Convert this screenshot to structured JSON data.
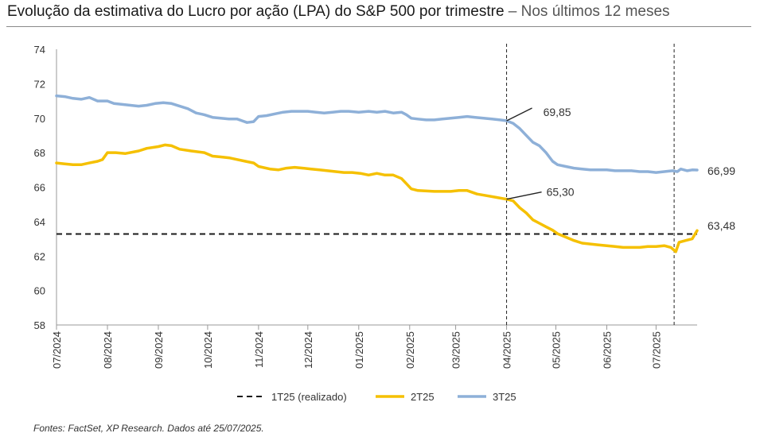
{
  "title": {
    "main": "Evolução da estimativa do Lucro por ação (LPA) do S&P 500 por trimestre",
    "sub": " – Nos últimos 12 meses"
  },
  "footer": "Fontes: FactSet, XP Research. Dados até 25/07/2025.",
  "colors": {
    "t1": "#1a1a1a",
    "t2": "#f5c000",
    "t3": "#8eb0d8",
    "axis": "#999999"
  },
  "chart_data": {
    "type": "line",
    "ylim": [
      58,
      74
    ],
    "yticks": [
      58,
      60,
      62,
      64,
      66,
      68,
      70,
      72,
      74
    ],
    "x_range_days": [
      0,
      390
    ],
    "months": [
      {
        "label": "07/2024",
        "day": 0
      },
      {
        "label": "08/2024",
        "day": 31
      },
      {
        "label": "09/2024",
        "day": 62
      },
      {
        "label": "10/2024",
        "day": 92
      },
      {
        "label": "11/2024",
        "day": 123
      },
      {
        "label": "12/2024",
        "day": 153
      },
      {
        "label": "01/2025",
        "day": 184
      },
      {
        "label": "02/2025",
        "day": 215
      },
      {
        "label": "03/2025",
        "day": 243
      },
      {
        "label": "04/2025",
        "day": 274
      },
      {
        "label": "05/2025",
        "day": 304
      },
      {
        "label": "06/2025",
        "day": 335
      },
      {
        "label": "07/2025",
        "day": 365
      }
    ],
    "vlines_day": [
      274,
      376
    ],
    "series": [
      {
        "name": "1T25 (realizado)",
        "style": "dashed",
        "constant": 63.28
      },
      {
        "name": "2T25",
        "style": "solid",
        "points": [
          [
            0,
            67.4
          ],
          [
            5,
            67.35
          ],
          [
            10,
            67.3
          ],
          [
            15,
            67.3
          ],
          [
            20,
            67.4
          ],
          [
            25,
            67.5
          ],
          [
            28,
            67.6
          ],
          [
            31,
            68.0
          ],
          [
            36,
            68.0
          ],
          [
            42,
            67.95
          ],
          [
            50,
            68.1
          ],
          [
            55,
            68.25
          ],
          [
            62,
            68.35
          ],
          [
            66,
            68.45
          ],
          [
            70,
            68.4
          ],
          [
            75,
            68.2
          ],
          [
            82,
            68.1
          ],
          [
            90,
            68.0
          ],
          [
            95,
            67.8
          ],
          [
            100,
            67.75
          ],
          [
            105,
            67.7
          ],
          [
            110,
            67.6
          ],
          [
            115,
            67.5
          ],
          [
            120,
            67.4
          ],
          [
            123,
            67.2
          ],
          [
            130,
            67.05
          ],
          [
            135,
            67.0
          ],
          [
            140,
            67.1
          ],
          [
            145,
            67.15
          ],
          [
            150,
            67.1
          ],
          [
            155,
            67.05
          ],
          [
            160,
            67.0
          ],
          [
            165,
            66.95
          ],
          [
            170,
            66.9
          ],
          [
            175,
            66.85
          ],
          [
            180,
            66.85
          ],
          [
            185,
            66.8
          ],
          [
            190,
            66.7
          ],
          [
            195,
            66.8
          ],
          [
            200,
            66.7
          ],
          [
            205,
            66.7
          ],
          [
            210,
            66.5
          ],
          [
            213,
            66.2
          ],
          [
            216,
            65.9
          ],
          [
            220,
            65.8
          ],
          [
            230,
            65.75
          ],
          [
            240,
            65.75
          ],
          [
            245,
            65.8
          ],
          [
            250,
            65.8
          ],
          [
            256,
            65.6
          ],
          [
            262,
            65.5
          ],
          [
            268,
            65.4
          ],
          [
            274,
            65.3
          ],
          [
            278,
            65.2
          ],
          [
            282,
            64.8
          ],
          [
            286,
            64.5
          ],
          [
            290,
            64.1
          ],
          [
            294,
            63.9
          ],
          [
            298,
            63.7
          ],
          [
            302,
            63.5
          ],
          [
            305,
            63.3
          ],
          [
            310,
            63.1
          ],
          [
            315,
            62.9
          ],
          [
            320,
            62.75
          ],
          [
            325,
            62.7
          ],
          [
            330,
            62.65
          ],
          [
            335,
            62.6
          ],
          [
            340,
            62.55
          ],
          [
            345,
            62.5
          ],
          [
            350,
            62.5
          ],
          [
            355,
            62.5
          ],
          [
            360,
            62.55
          ],
          [
            365,
            62.55
          ],
          [
            370,
            62.6
          ],
          [
            374,
            62.5
          ],
          [
            377,
            62.25
          ],
          [
            379,
            62.8
          ],
          [
            383,
            62.9
          ],
          [
            387,
            63.0
          ],
          [
            390,
            63.48
          ]
        ]
      },
      {
        "name": "3T25",
        "style": "solid",
        "points": [
          [
            0,
            71.3
          ],
          [
            5,
            71.25
          ],
          [
            10,
            71.15
          ],
          [
            15,
            71.1
          ],
          [
            20,
            71.2
          ],
          [
            25,
            71.0
          ],
          [
            31,
            71.0
          ],
          [
            35,
            70.85
          ],
          [
            40,
            70.8
          ],
          [
            45,
            70.75
          ],
          [
            50,
            70.7
          ],
          [
            55,
            70.75
          ],
          [
            60,
            70.85
          ],
          [
            65,
            70.9
          ],
          [
            70,
            70.85
          ],
          [
            75,
            70.7
          ],
          [
            80,
            70.55
          ],
          [
            85,
            70.3
          ],
          [
            90,
            70.2
          ],
          [
            95,
            70.05
          ],
          [
            100,
            70.0
          ],
          [
            105,
            69.95
          ],
          [
            110,
            69.95
          ],
          [
            113,
            69.85
          ],
          [
            116,
            69.75
          ],
          [
            120,
            69.8
          ],
          [
            123,
            70.1
          ],
          [
            128,
            70.15
          ],
          [
            133,
            70.25
          ],
          [
            138,
            70.35
          ],
          [
            143,
            70.4
          ],
          [
            148,
            70.4
          ],
          [
            153,
            70.4
          ],
          [
            158,
            70.35
          ],
          [
            163,
            70.3
          ],
          [
            168,
            70.35
          ],
          [
            173,
            70.4
          ],
          [
            178,
            70.4
          ],
          [
            184,
            70.35
          ],
          [
            190,
            70.4
          ],
          [
            195,
            70.35
          ],
          [
            200,
            70.4
          ],
          [
            205,
            70.3
          ],
          [
            210,
            70.35
          ],
          [
            213,
            70.2
          ],
          [
            216,
            70.0
          ],
          [
            220,
            69.95
          ],
          [
            225,
            69.9
          ],
          [
            230,
            69.9
          ],
          [
            235,
            69.95
          ],
          [
            240,
            70.0
          ],
          [
            245,
            70.05
          ],
          [
            250,
            70.1
          ],
          [
            255,
            70.05
          ],
          [
            260,
            70.0
          ],
          [
            265,
            69.95
          ],
          [
            270,
            69.9
          ],
          [
            274,
            69.85
          ],
          [
            278,
            69.7
          ],
          [
            282,
            69.4
          ],
          [
            286,
            69.0
          ],
          [
            290,
            68.6
          ],
          [
            294,
            68.4
          ],
          [
            298,
            68.0
          ],
          [
            302,
            67.5
          ],
          [
            305,
            67.3
          ],
          [
            310,
            67.2
          ],
          [
            315,
            67.1
          ],
          [
            320,
            67.05
          ],
          [
            325,
            67.0
          ],
          [
            330,
            67.0
          ],
          [
            335,
            67.0
          ],
          [
            340,
            66.95
          ],
          [
            345,
            66.95
          ],
          [
            350,
            66.95
          ],
          [
            355,
            66.9
          ],
          [
            360,
            66.9
          ],
          [
            365,
            66.85
          ],
          [
            370,
            66.9
          ],
          [
            375,
            66.95
          ],
          [
            378,
            66.9
          ],
          [
            380,
            67.05
          ],
          [
            384,
            66.95
          ],
          [
            387,
            67.0
          ],
          [
            390,
            66.99
          ]
        ]
      }
    ],
    "annotations": [
      {
        "label": "69,85",
        "day": 274,
        "value": 69.85
      },
      {
        "label": "65,30",
        "day": 274,
        "value": 65.3
      },
      {
        "label": "66,99",
        "day": 390,
        "value": 66.99
      },
      {
        "label": "63,48",
        "day": 390,
        "value": 63.48
      }
    ]
  }
}
